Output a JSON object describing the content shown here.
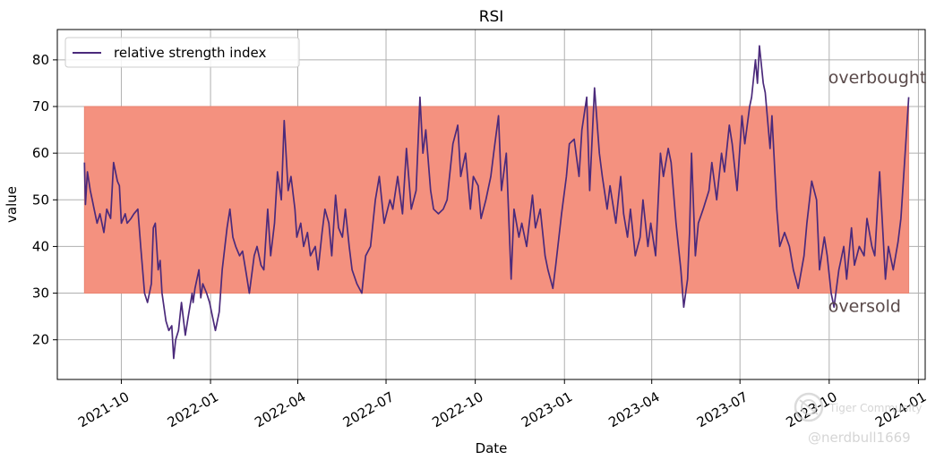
{
  "chart_data": {
    "type": "line",
    "title": "RSI",
    "xlabel": "Date",
    "ylabel": "value",
    "x_ticks": [
      "2021-10",
      "2022-01",
      "2022-04",
      "2022-07",
      "2022-10",
      "2023-01",
      "2023-04",
      "2023-07",
      "2023-10",
      "2024-01"
    ],
    "xlim": [
      "2021-07-27",
      "2024-01-08"
    ],
    "y_ticks": [
      20,
      30,
      40,
      50,
      60,
      70,
      80
    ],
    "ylim": [
      11.5,
      86.5
    ],
    "grid": true,
    "legend_placement": "top-left",
    "band": {
      "lower": 30,
      "upper": 70,
      "color": "#f4917f"
    },
    "annotations": [
      {
        "text": "overbought",
        "x": "2023-09-30",
        "y": 75
      },
      {
        "text": "oversold",
        "x": "2023-09-30",
        "y": 26
      }
    ],
    "series": [
      {
        "name": "relative strength index",
        "color": "#4b2a7b",
        "x": [
          "2021-08-24",
          "2021-08-25",
          "2021-08-27",
          "2021-08-30",
          "2021-09-01",
          "2021-09-03",
          "2021-09-06",
          "2021-09-09",
          "2021-09-13",
          "2021-09-16",
          "2021-09-20",
          "2021-09-23",
          "2021-09-27",
          "2021-09-29",
          "2021-10-01",
          "2021-10-05",
          "2021-10-07",
          "2021-10-11",
          "2021-10-14",
          "2021-10-18",
          "2021-10-21",
          "2021-10-25",
          "2021-10-28",
          "2021-11-01",
          "2021-11-03",
          "2021-11-05",
          "2021-11-08",
          "2021-11-10",
          "2021-11-12",
          "2021-11-16",
          "2021-11-19",
          "2021-11-22",
          "2021-11-24",
          "2021-11-26",
          "2021-11-29",
          "2021-12-02",
          "2021-12-06",
          "2021-12-09",
          "2021-12-13",
          "2021-12-14",
          "2021-12-16",
          "2021-12-20",
          "2021-12-22",
          "2021-12-24",
          "2021-12-28",
          "2021-12-31",
          "2022-01-03",
          "2022-01-06",
          "2022-01-10",
          "2022-01-13",
          "2022-01-18",
          "2022-01-21",
          "2022-01-24",
          "2022-01-27",
          "2022-01-31",
          "2022-02-03",
          "2022-02-07",
          "2022-02-10",
          "2022-02-15",
          "2022-02-18",
          "2022-02-22",
          "2022-02-25",
          "2022-03-01",
          "2022-03-04",
          "2022-03-08",
          "2022-03-11",
          "2022-03-15",
          "2022-03-18",
          "2022-03-22",
          "2022-03-25",
          "2022-03-29",
          "2022-03-31",
          "2022-04-04",
          "2022-04-07",
          "2022-04-11",
          "2022-04-14",
          "2022-04-19",
          "2022-04-22",
          "2022-04-26",
          "2022-04-29",
          "2022-05-03",
          "2022-05-06",
          "2022-05-10",
          "2022-05-13",
          "2022-05-17",
          "2022-05-20",
          "2022-05-24",
          "2022-05-27",
          "2022-06-01",
          "2022-06-06",
          "2022-06-10",
          "2022-06-15",
          "2022-06-20",
          "2022-06-24",
          "2022-06-29",
          "2022-07-05",
          "2022-07-08",
          "2022-07-13",
          "2022-07-18",
          "2022-07-22",
          "2022-07-27",
          "2022-08-01",
          "2022-08-05",
          "2022-08-08",
          "2022-08-11",
          "2022-08-16",
          "2022-08-19",
          "2022-08-24",
          "2022-08-29",
          "2022-09-02",
          "2022-09-08",
          "2022-09-13",
          "2022-09-16",
          "2022-09-21",
          "2022-09-26",
          "2022-09-29",
          "2022-10-04",
          "2022-10-07",
          "2022-10-12",
          "2022-10-17",
          "2022-10-20",
          "2022-10-25",
          "2022-10-28",
          "2022-11-02",
          "2022-11-07",
          "2022-11-10",
          "2022-11-15",
          "2022-11-18",
          "2022-11-23",
          "2022-11-29",
          "2022-12-02",
          "2022-12-07",
          "2022-12-12",
          "2022-12-15",
          "2022-12-20",
          "2022-12-23",
          "2022-12-29",
          "2023-01-03",
          "2023-01-06",
          "2023-01-11",
          "2023-01-16",
          "2023-01-19",
          "2023-01-24",
          "2023-01-27",
          "2023-02-01",
          "2023-02-06",
          "2023-02-09",
          "2023-02-14",
          "2023-02-17",
          "2023-02-23",
          "2023-02-28",
          "2023-03-03",
          "2023-03-07",
          "2023-03-10",
          "2023-03-15",
          "2023-03-20",
          "2023-03-23",
          "2023-03-28",
          "2023-03-31",
          "2023-04-05",
          "2023-04-10",
          "2023-04-13",
          "2023-04-18",
          "2023-04-21",
          "2023-04-26",
          "2023-05-01",
          "2023-05-04",
          "2023-05-08",
          "2023-05-10",
          "2023-05-12",
          "2023-05-16",
          "2023-05-19",
          "2023-05-24",
          "2023-05-30",
          "2023-06-02",
          "2023-06-07",
          "2023-06-12",
          "2023-06-15",
          "2023-06-20",
          "2023-06-23",
          "2023-06-28",
          "2023-07-03",
          "2023-07-06",
          "2023-07-11",
          "2023-07-13",
          "2023-07-17",
          "2023-07-19",
          "2023-07-21",
          "2023-07-25",
          "2023-07-27",
          "2023-08-01",
          "2023-08-03",
          "2023-08-08",
          "2023-08-11",
          "2023-08-16",
          "2023-08-21",
          "2023-08-25",
          "2023-08-30",
          "2023-09-05",
          "2023-09-08",
          "2023-09-13",
          "2023-09-18",
          "2023-09-21",
          "2023-09-26",
          "2023-09-29",
          "2023-10-03",
          "2023-10-06",
          "2023-10-11",
          "2023-10-16",
          "2023-10-19",
          "2023-10-24",
          "2023-10-27",
          "2023-11-01",
          "2023-11-06",
          "2023-11-09",
          "2023-11-14",
          "2023-11-17",
          "2023-11-22",
          "2023-11-28",
          "2023-12-01",
          "2023-12-06",
          "2023-12-11",
          "2023-12-14",
          "2023-12-19",
          "2023-12-22"
        ],
        "y": [
          58,
          49,
          56,
          52,
          50,
          48,
          45,
          47,
          43,
          48,
          46,
          58,
          54,
          53,
          45,
          47,
          45,
          46,
          47,
          48,
          40,
          30,
          28,
          32,
          44,
          45,
          35,
          37,
          30,
          24,
          22,
          23,
          16,
          20,
          22,
          28,
          21,
          25,
          30,
          28,
          31,
          35,
          29,
          32,
          30,
          28,
          25,
          22,
          26,
          35,
          44,
          48,
          42,
          40,
          38,
          39,
          34,
          30,
          38,
          40,
          36,
          35,
          48,
          38,
          45,
          56,
          50,
          67,
          52,
          55,
          48,
          42,
          45,
          40,
          43,
          38,
          40,
          35,
          43,
          48,
          45,
          38,
          51,
          44,
          42,
          48,
          40,
          35,
          32,
          30,
          38,
          40,
          50,
          55,
          45,
          50,
          48,
          55,
          47,
          61,
          48,
          52,
          72,
          60,
          65,
          52,
          48,
          47,
          48,
          50,
          62,
          66,
          55,
          60,
          48,
          55,
          53,
          46,
          50,
          55,
          60,
          68,
          52,
          60,
          33,
          48,
          42,
          45,
          40,
          51,
          44,
          48,
          38,
          35,
          31,
          36,
          47,
          55,
          62,
          63,
          55,
          65,
          72,
          52,
          74,
          60,
          55,
          48,
          53,
          45,
          55,
          47,
          42,
          48,
          38,
          42,
          50,
          40,
          45,
          38,
          60,
          55,
          61,
          58,
          45,
          35,
          27,
          33,
          43,
          60,
          38,
          45,
          48,
          52,
          58,
          50,
          60,
          56,
          66,
          62,
          52,
          68,
          62,
          70,
          72,
          80,
          75,
          83,
          75,
          73,
          61,
          68,
          48,
          40,
          43,
          40,
          35,
          31,
          38,
          45,
          54,
          50,
          35,
          42,
          38,
          30,
          27,
          35,
          40,
          33,
          44,
          36,
          40,
          38,
          46,
          40,
          38,
          56,
          33,
          40,
          35,
          41,
          46,
          62,
          72
        ]
      }
    ]
  },
  "legend": {
    "label": "relative strength index"
  },
  "watermark": {
    "brand": "Tiger Community",
    "handle": "@nerdbull1669"
  }
}
